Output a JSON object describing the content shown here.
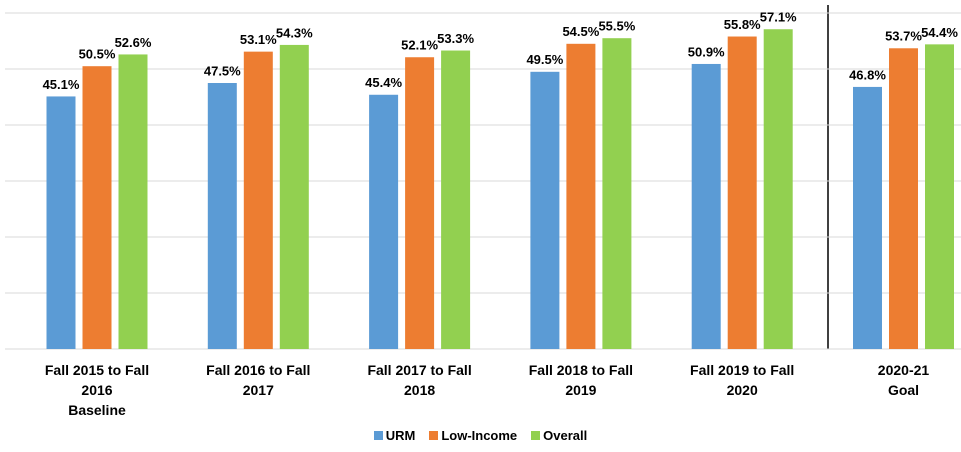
{
  "chart_data": {
    "type": "bar",
    "categories": [
      "Fall 2015 to Fall\n2016\nBaseline",
      "Fall 2016 to Fall\n2017",
      "Fall 2017 to Fall\n2018",
      "Fall 2018 to Fall\n2019",
      "Fall 2019 to Fall\n2020",
      "2020-21\nGoal"
    ],
    "series": [
      {
        "name": "URM",
        "color": "#5b9bd5",
        "values": [
          45.1,
          47.5,
          45.4,
          49.5,
          50.9,
          46.8
        ],
        "value_labels": [
          "45.1%",
          "47.5%",
          "45.4%",
          "49.5%",
          "50.9%",
          "46.8%"
        ]
      },
      {
        "name": "Low-Income",
        "color": "#ed7d31",
        "values": [
          50.5,
          53.1,
          52.1,
          54.5,
          55.8,
          53.7
        ],
        "value_labels": [
          "50.5%",
          "53.1%",
          "52.1%",
          "54.5%",
          "55.8%",
          "53.7%"
        ]
      },
      {
        "name": "Overall",
        "color": "#92d050",
        "values": [
          52.6,
          54.3,
          53.3,
          55.5,
          57.1,
          54.4
        ],
        "value_labels": [
          "52.6%",
          "54.3%",
          "53.3%",
          "55.5%",
          "57.1%",
          "54.4%"
        ]
      }
    ],
    "ylim": [
      0,
      60
    ],
    "yticks": [
      0,
      10,
      20,
      30,
      40,
      50,
      60
    ],
    "grid": true,
    "legend": "bottom"
  }
}
